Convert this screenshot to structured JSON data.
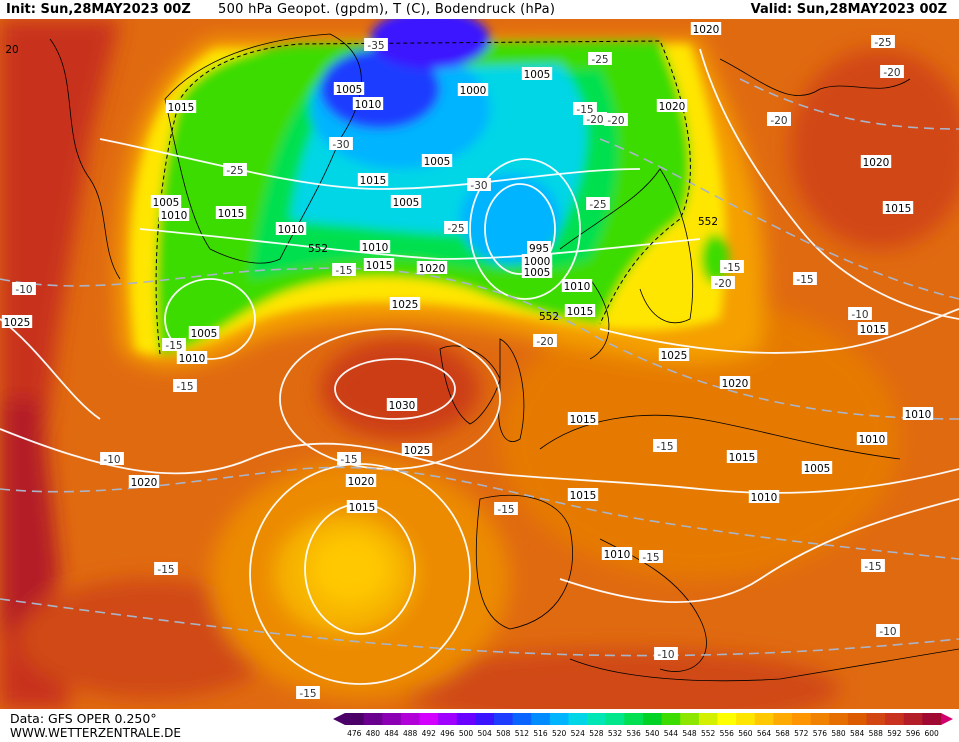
{
  "header": {
    "init": "Init: Sun,28MAY2023 00Z",
    "title": "500 hPa Geopot. (gpdm), T (C), Bodendruck (hPa)",
    "valid": "Valid: Sun,28MAY2023 00Z"
  },
  "footer": {
    "source": "Data: GFS OPER 0.250°",
    "website": "WWW.WETTERZENTRALE.DE"
  },
  "scale": {
    "labels": [
      "476",
      "480",
      "484",
      "488",
      "492",
      "496",
      "500",
      "504",
      "508",
      "512",
      "516",
      "520",
      "524",
      "528",
      "532",
      "536",
      "540",
      "544",
      "548",
      "552",
      "556",
      "560",
      "564",
      "568",
      "572",
      "576",
      "580",
      "584",
      "588",
      "592",
      "596",
      "600"
    ],
    "colors": [
      "#4a0066",
      "#6a008e",
      "#8c00b4",
      "#b200d8",
      "#d400ff",
      "#a000ff",
      "#6a00ff",
      "#3a14ff",
      "#1e3cff",
      "#0a64ff",
      "#008cff",
      "#00b4ff",
      "#00d6e6",
      "#00e6b4",
      "#00e68a",
      "#00e050",
      "#00d226",
      "#3cdc00",
      "#8ce600",
      "#d2f000",
      "#ffff00",
      "#ffe600",
      "#ffc800",
      "#ffaa00",
      "#ff9600",
      "#f08200",
      "#e66e00",
      "#dc5a00",
      "#d24614",
      "#c8321e",
      "#b41e28",
      "#a00a32"
    ]
  },
  "pressure_labels": [
    "1015",
    "1005",
    "1010",
    "1000",
    "1005",
    "1005",
    "1020",
    "1015",
    "1005",
    "1010",
    "1005",
    "1015",
    "1010",
    "1015",
    "1010",
    "1020",
    "995",
    "1000",
    "1005",
    "1010",
    "1015",
    "1025",
    "1030",
    "1025",
    "1020",
    "1015",
    "1020",
    "1020",
    "1025",
    "1020",
    "1015",
    "1015",
    "1015",
    "1010",
    "1005",
    "1010",
    "1010",
    "1010",
    "1015",
    "1020",
    "1015",
    "1025",
    "1005",
    "1010"
  ],
  "temperature_labels": [
    "-35",
    "-30",
    "-30",
    "-25",
    "-25",
    "-25",
    "-20",
    "-20",
    "-15",
    "-15",
    "-15",
    "-10",
    "-10",
    "-15",
    "-15",
    "-15",
    "-15",
    "-15",
    "-20",
    "-15",
    "-15",
    "-10",
    "-10",
    "-15",
    "-25",
    "-20",
    "-15",
    "-20",
    "-15",
    "-25",
    "-20",
    "-15",
    "-10"
  ],
  "map_number_labels": [
    "552",
    "552",
    "552",
    "20"
  ]
}
